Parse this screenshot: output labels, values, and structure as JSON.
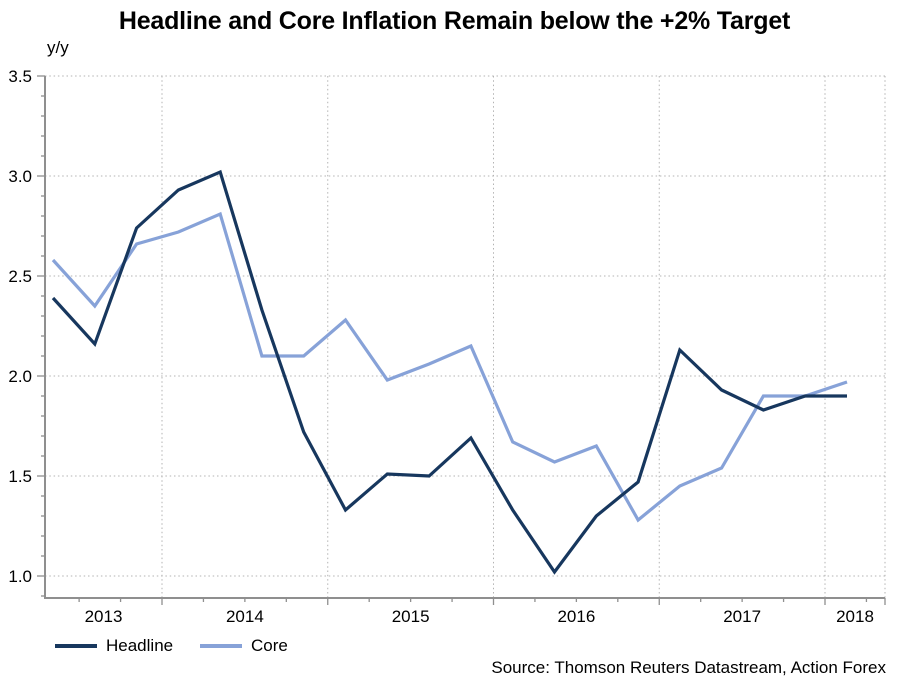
{
  "title": "Headline and Core Inflation Remain below the +2% Target",
  "y_axis_unit_label": "y/y",
  "source_note": "Source: Thomson Reuters Datastream, Action Forex",
  "legend": {
    "items": [
      {
        "label": "Headline"
      },
      {
        "label": "Core"
      }
    ]
  },
  "colors": {
    "headline": "#17375e",
    "core": "#87a2d8",
    "grid": "#b3b3b3",
    "axis": "#8f8f8f",
    "text": "#000000",
    "background": "#ffffff"
  },
  "chart_data": {
    "type": "line",
    "title": "Headline and Core Inflation Remain below the +2% Target",
    "xlabel": "",
    "ylabel": "y/y",
    "ylim": [
      0.89,
      3.5
    ],
    "y_ticks": [
      "1.0",
      "1.5",
      "2.0",
      "2.5",
      "3.0",
      "3.5"
    ],
    "x_year_labels": [
      "2013",
      "2014",
      "2015",
      "2016",
      "2017",
      "2018"
    ],
    "grid": "dotted",
    "legend_position": "bottom-left",
    "categories": [
      "2013-Q2",
      "2013-Q3",
      "2013-Q4",
      "2014-Q1",
      "2014-Q2",
      "2014-Q3",
      "2014-Q4",
      "2015-Q1",
      "2015-Q2",
      "2015-Q3",
      "2015-Q4",
      "2016-Q1",
      "2016-Q2",
      "2016-Q3",
      "2016-Q4",
      "2017-Q1",
      "2017-Q2",
      "2017-Q3",
      "2017-Q4",
      "2018-Q1"
    ],
    "series": [
      {
        "name": "Headline",
        "color": "#17375e",
        "values": [
          2.39,
          2.16,
          2.74,
          2.93,
          3.02,
          2.33,
          1.72,
          1.33,
          1.51,
          1.5,
          1.69,
          1.33,
          1.02,
          1.3,
          1.47,
          2.13,
          1.93,
          1.83,
          1.9,
          1.9
        ]
      },
      {
        "name": "Core",
        "color": "#87a2d8",
        "values": [
          2.58,
          2.35,
          2.66,
          2.72,
          2.81,
          2.1,
          2.1,
          2.28,
          1.98,
          2.06,
          2.15,
          1.67,
          1.57,
          1.65,
          1.28,
          1.45,
          1.54,
          1.9,
          1.9,
          1.97
        ]
      }
    ]
  }
}
